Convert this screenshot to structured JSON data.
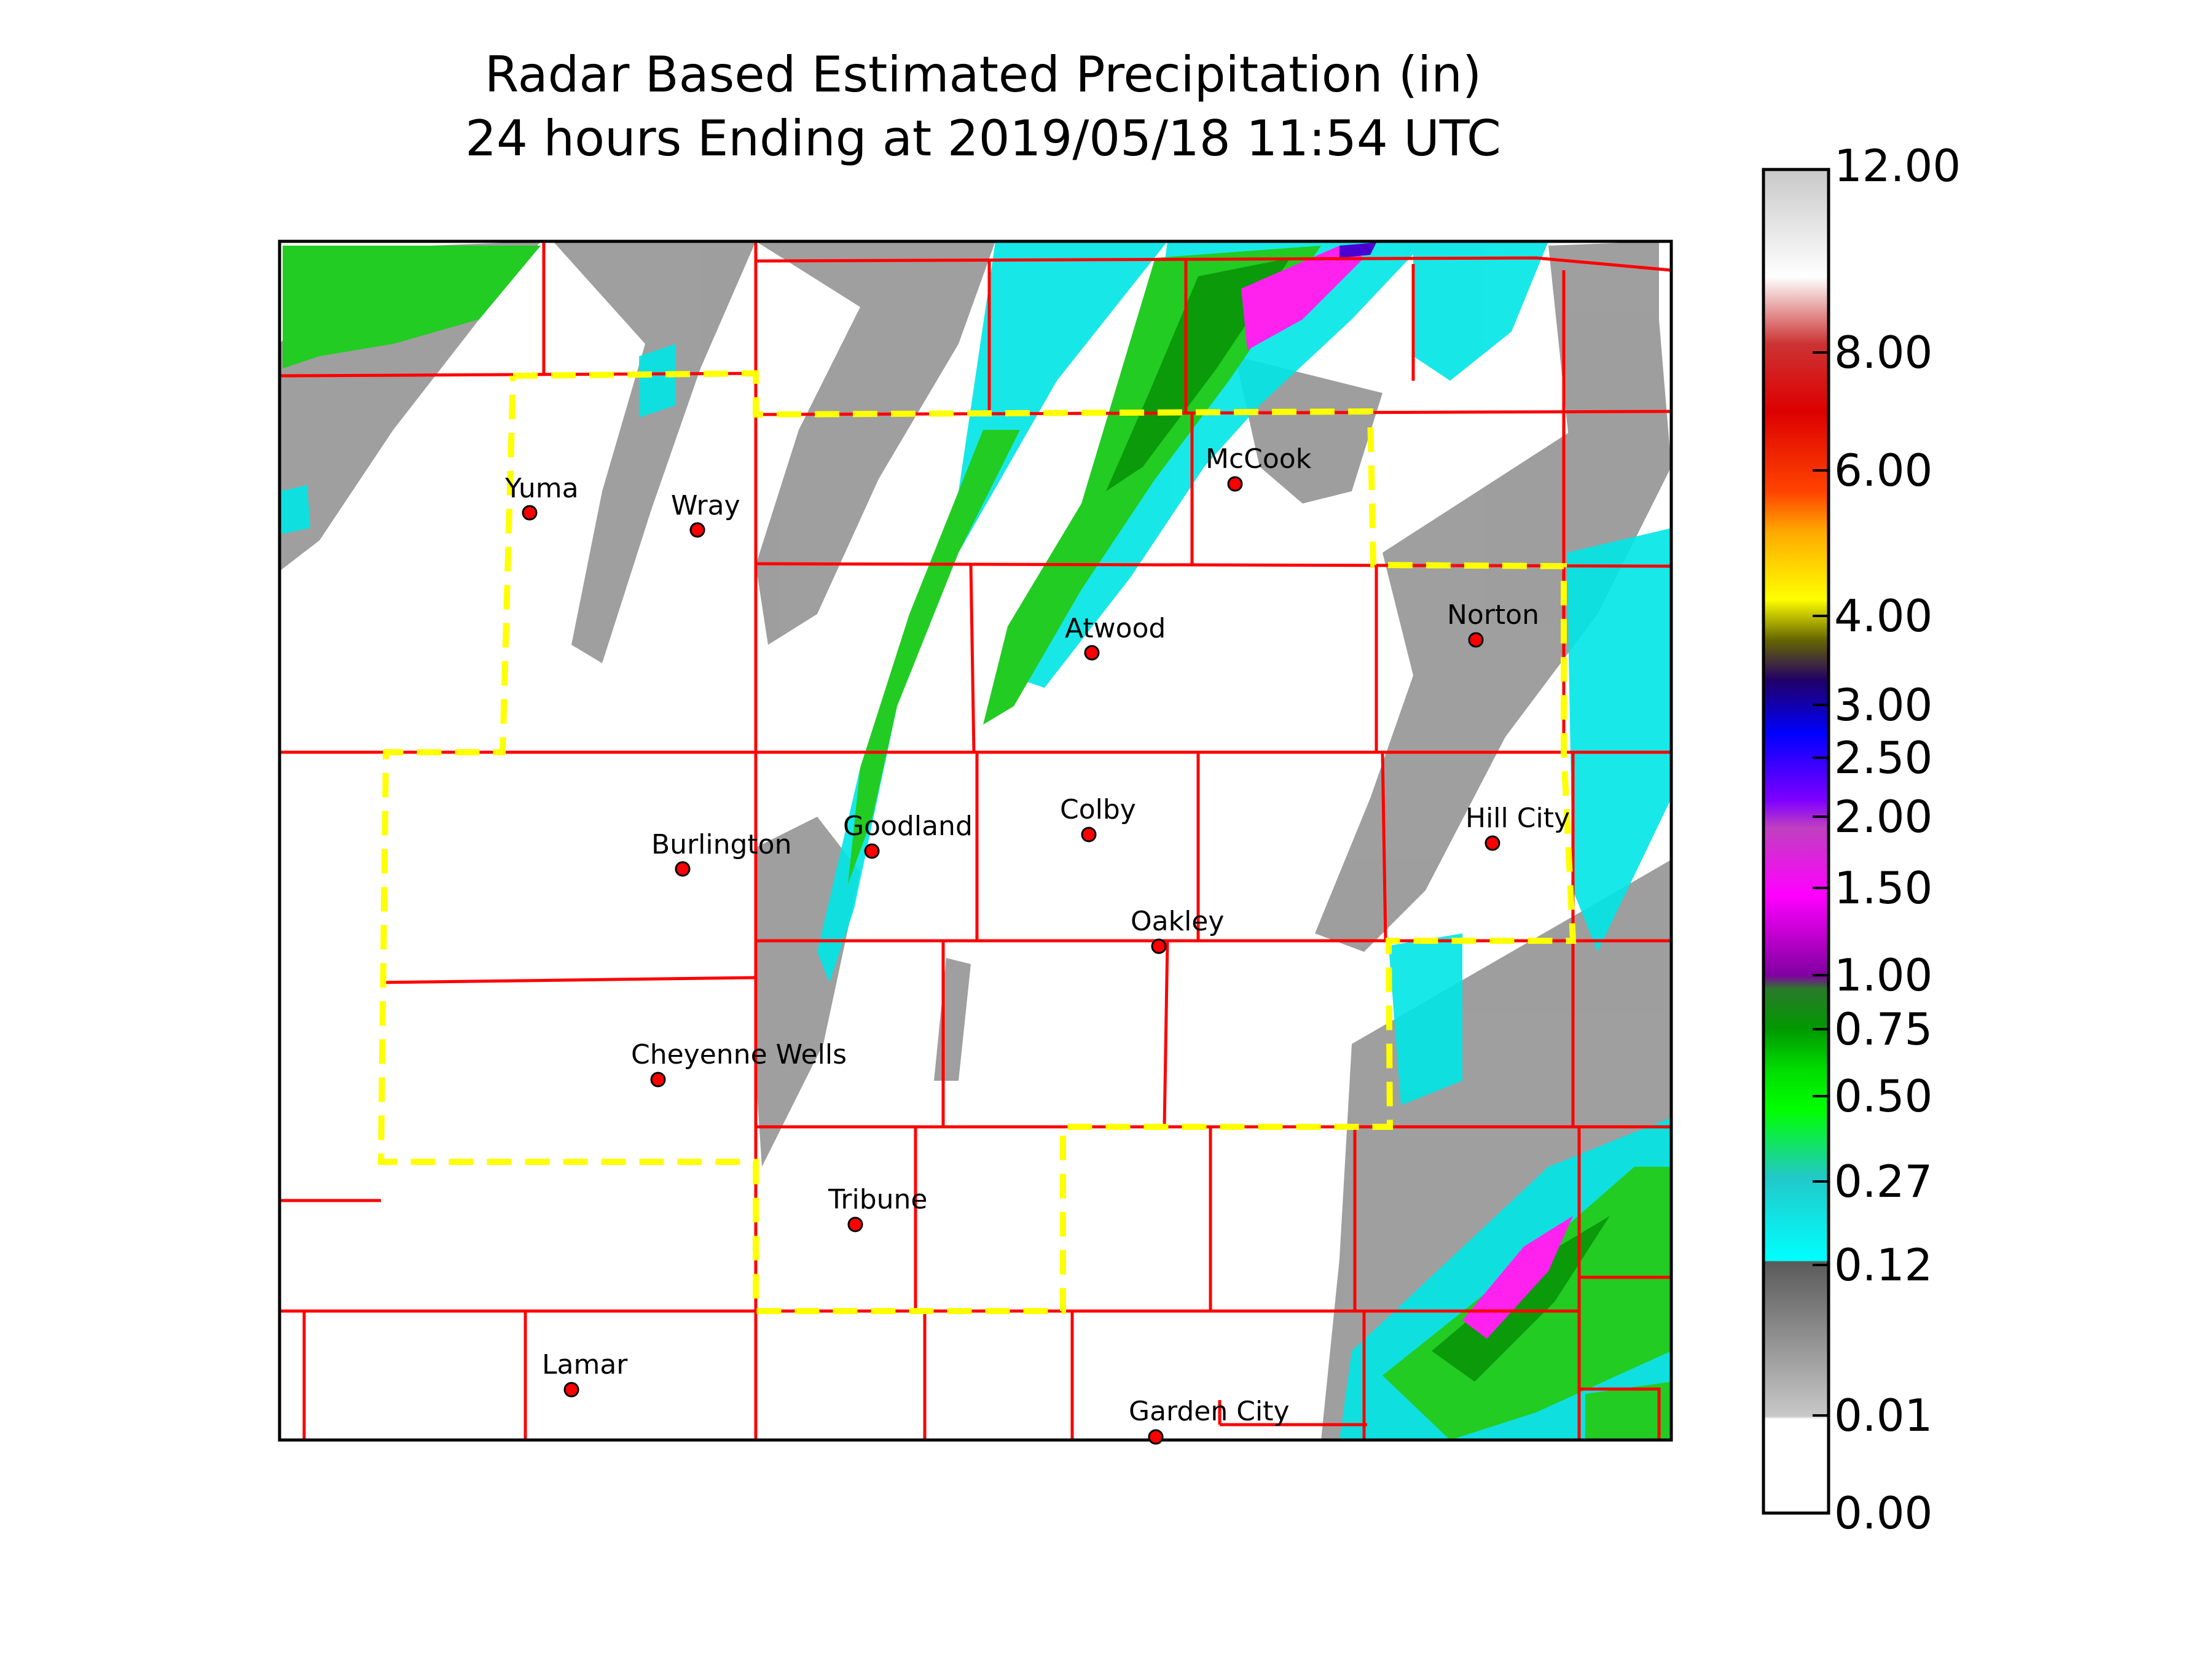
{
  "title": {
    "line1": "Radar Based Estimated Precipitation (in)",
    "line2": "24 hours Ending at 2019/05/18 11:54 UTC"
  },
  "cities": [
    {
      "name": "Yuma"
    },
    {
      "name": "Wray"
    },
    {
      "name": "McCook"
    },
    {
      "name": "Atwood"
    },
    {
      "name": "Norton"
    },
    {
      "name": "Burlington"
    },
    {
      "name": "Goodland"
    },
    {
      "name": "Colby"
    },
    {
      "name": "Hill City"
    },
    {
      "name": "Oakley"
    },
    {
      "name": "Cheyenne Wells"
    },
    {
      "name": "Tribune"
    },
    {
      "name": "Lamar"
    },
    {
      "name": "Garden City"
    }
  ],
  "colorbar": {
    "ticks": [
      "12.00",
      "8.00",
      "6.00",
      "4.00",
      "3.00",
      "2.50",
      "2.00",
      "1.50",
      "1.00",
      "0.75",
      "0.50",
      "0.27",
      "0.12",
      "0.01",
      "0.00"
    ]
  },
  "colors": {
    "county_border": "#ff0000",
    "wfo_border": "#ffff00",
    "city_marker": "#ff0000"
  }
}
